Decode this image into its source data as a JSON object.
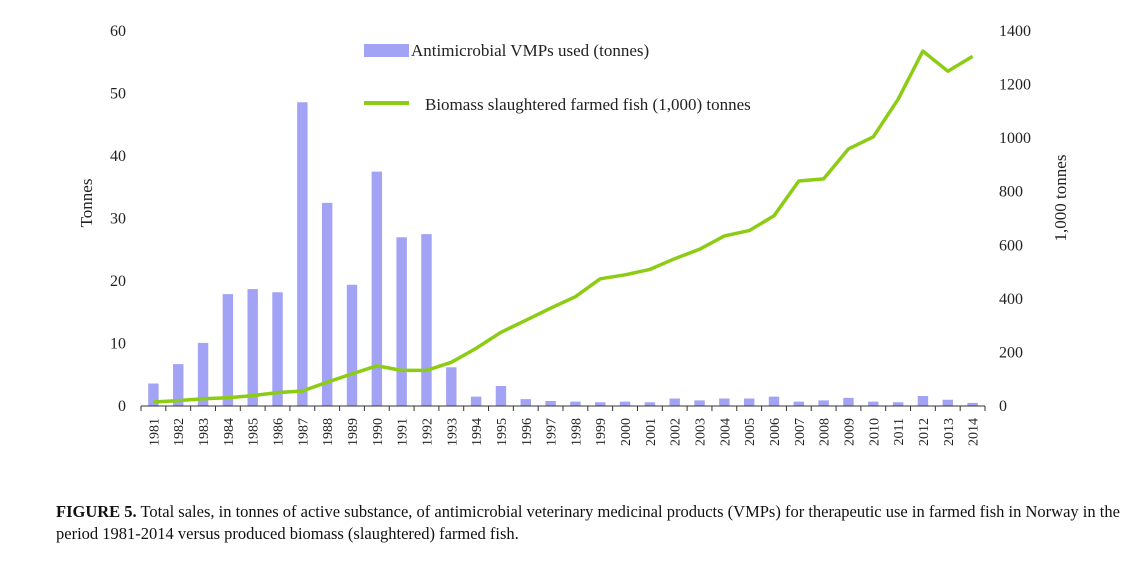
{
  "chart_data": {
    "type": "bar+line",
    "categories": [
      "1981",
      "1982",
      "1983",
      "1984",
      "1985",
      "1986",
      "1987",
      "1988",
      "1989",
      "1990",
      "1991",
      "1992",
      "1993",
      "1994",
      "1995",
      "1996",
      "1997",
      "1998",
      "1999",
      "2000",
      "2001",
      "2002",
      "2003",
      "2004",
      "2005",
      "2006",
      "2007",
      "2008",
      "2009",
      "2010",
      "2011",
      "2012",
      "2013",
      "2014"
    ],
    "series": [
      {
        "name": "Antimicrobial VMPs used (tonnes)",
        "type": "bar",
        "axis": "left",
        "color": "#a3a3f5",
        "values": [
          3.6,
          6.7,
          10.1,
          17.9,
          18.7,
          18.2,
          48.6,
          32.5,
          19.4,
          37.5,
          27,
          27.5,
          6.2,
          1.5,
          3.2,
          1.1,
          0.8,
          0.7,
          0.6,
          0.7,
          0.6,
          1.2,
          0.9,
          1.2,
          1.2,
          1.5,
          0.7,
          0.9,
          1.3,
          0.7,
          0.6,
          1.6,
          1.0,
          0.5
        ]
      },
      {
        "name": "Biomass slaughtered farmed fish (1,000) tonnes",
        "type": "line",
        "axis": "right",
        "color": "#8ccc14",
        "values": [
          15,
          20,
          27,
          31,
          39,
          50,
          56,
          89,
          120,
          150,
          133,
          133,
          163,
          215,
          275,
          320,
          365,
          408,
          475,
          490,
          510,
          550,
          585,
          635,
          655,
          710,
          840,
          848,
          960,
          1005,
          1145,
          1325,
          1250,
          1305
        ]
      }
    ],
    "ylabel": "Tonnes",
    "y2label": "1,000 tonnes",
    "ylim": [
      0,
      60
    ],
    "yticks": [
      "0",
      "10",
      "20",
      "30",
      "40",
      "50",
      "60"
    ],
    "y2lim": [
      0,
      1400
    ],
    "y2ticks": [
      "0",
      "200",
      "400",
      "600",
      "800",
      "1000",
      "1200",
      "1400"
    ],
    "grid": false,
    "legend_position": "top-center"
  },
  "caption": {
    "lead": "FIGURE 5.",
    "text": " Total sales, in tonnes of active substance, of antimicrobial veterinary medicinal products (VMPs) for therapeutic use in farmed fish in Norway in the period 1981-2014 versus produced biomass (slaughtered) farmed fish."
  }
}
